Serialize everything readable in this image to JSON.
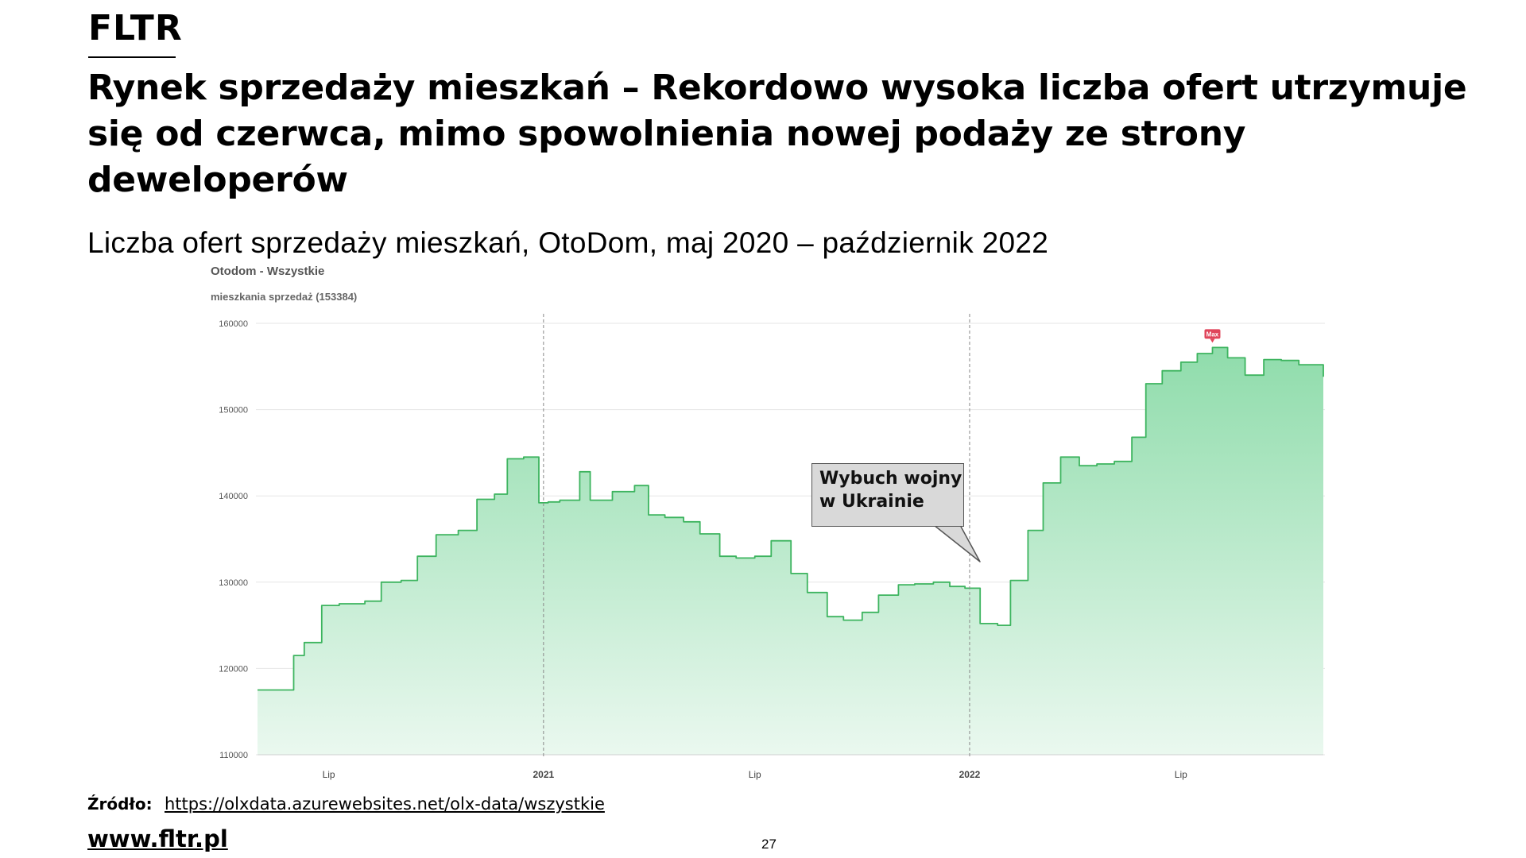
{
  "brand": {
    "logo": "FLTR"
  },
  "headline": "Rynek sprzedaży mieszkań – Rekordowo wysoka liczba ofert utrzymuje się od czerwca, mimo spowolnienia nowej podaży ze strony deweloperów",
  "subtitle": "Liczba ofert sprzedaży mieszkań, OtoDom, maj 2020 – październik 2022",
  "chart_title": "Otodom - Wszystkie",
  "series_label": "mieszkania sprzedaż (153384)",
  "callout": {
    "line1": "Wybuch wojny",
    "line2": "w Ukrainie"
  },
  "source": {
    "label": "Źródło:",
    "url": "https://olxdata.azurewebsites.net/olx-data/wszystkie"
  },
  "website": "www.fltr.pl",
  "page_number": "27",
  "colors": {
    "line": "#3db45f",
    "fill_top": "#8fdcab",
    "fill_bottom": "#eaf8ef",
    "max_marker": "#e0455b",
    "grid": "#e6e6e6"
  },
  "chart_data": {
    "type": "area",
    "title": "Otodom - Wszystkie",
    "xlabel": "",
    "ylabel": "",
    "ylim": [
      110000,
      160000
    ],
    "y_ticks": [
      160000,
      150000,
      140000,
      130000,
      120000,
      110000
    ],
    "x_range": [
      "2020-05-01",
      "2022-10-31"
    ],
    "x_ticks": [
      {
        "date": "2020-07-01",
        "label": "Lip",
        "bold": false
      },
      {
        "date": "2021-01-01",
        "label": "2021",
        "bold": true
      },
      {
        "date": "2021-07-01",
        "label": "Lip",
        "bold": false
      },
      {
        "date": "2022-01-01",
        "label": "2022",
        "bold": true
      },
      {
        "date": "2022-07-01",
        "label": "Lip",
        "bold": false
      }
    ],
    "vertical_markers": [
      "2021-01-01",
      "2022-01-01"
    ],
    "max_label": "Max",
    "max_point": {
      "date": "2022-07-28",
      "value": 157200
    },
    "series": [
      {
        "name": "mieszkania sprzedaż",
        "x": [
          "2020-05-01",
          "2020-06-01",
          "2020-06-10",
          "2020-06-25",
          "2020-07-10",
          "2020-08-01",
          "2020-08-15",
          "2020-09-01",
          "2020-09-15",
          "2020-10-01",
          "2020-10-20",
          "2020-11-05",
          "2020-11-20",
          "2020-12-01",
          "2020-12-15",
          "2020-12-28",
          "2021-01-05",
          "2021-01-15",
          "2021-02-01",
          "2021-02-10",
          "2021-03-01",
          "2021-03-20",
          "2021-04-01",
          "2021-04-15",
          "2021-05-01",
          "2021-05-15",
          "2021-06-01",
          "2021-06-15",
          "2021-07-01",
          "2021-07-15",
          "2021-08-01",
          "2021-08-15",
          "2021-09-01",
          "2021-09-15",
          "2021-10-01",
          "2021-10-15",
          "2021-11-01",
          "2021-11-15",
          "2021-12-01",
          "2021-12-15",
          "2021-12-28",
          "2022-01-10",
          "2022-01-25",
          "2022-02-05",
          "2022-02-20",
          "2022-03-05",
          "2022-03-20",
          "2022-04-05",
          "2022-04-20",
          "2022-05-05",
          "2022-05-20",
          "2022-06-01",
          "2022-06-15",
          "2022-07-01",
          "2022-07-15",
          "2022-07-28",
          "2022-08-10",
          "2022-08-25",
          "2022-09-10",
          "2022-09-25",
          "2022-10-10",
          "2022-10-31"
        ],
        "values": [
          117500,
          121500,
          123000,
          127300,
          127500,
          127800,
          130000,
          130200,
          133000,
          135500,
          136000,
          139600,
          140200,
          144300,
          144500,
          139200,
          139300,
          139500,
          142800,
          139500,
          140500,
          141200,
          137800,
          137500,
          137000,
          135600,
          133000,
          132800,
          133000,
          134800,
          131000,
          128800,
          126000,
          125600,
          126500,
          128500,
          129700,
          129800,
          130000,
          129500,
          129300,
          125200,
          125000,
          130200,
          136000,
          141500,
          144500,
          143500,
          143700,
          144000,
          146800,
          153000,
          154500,
          155500,
          156500,
          157200,
          156000,
          154000,
          155800,
          155700,
          155200,
          153800
        ]
      }
    ]
  }
}
